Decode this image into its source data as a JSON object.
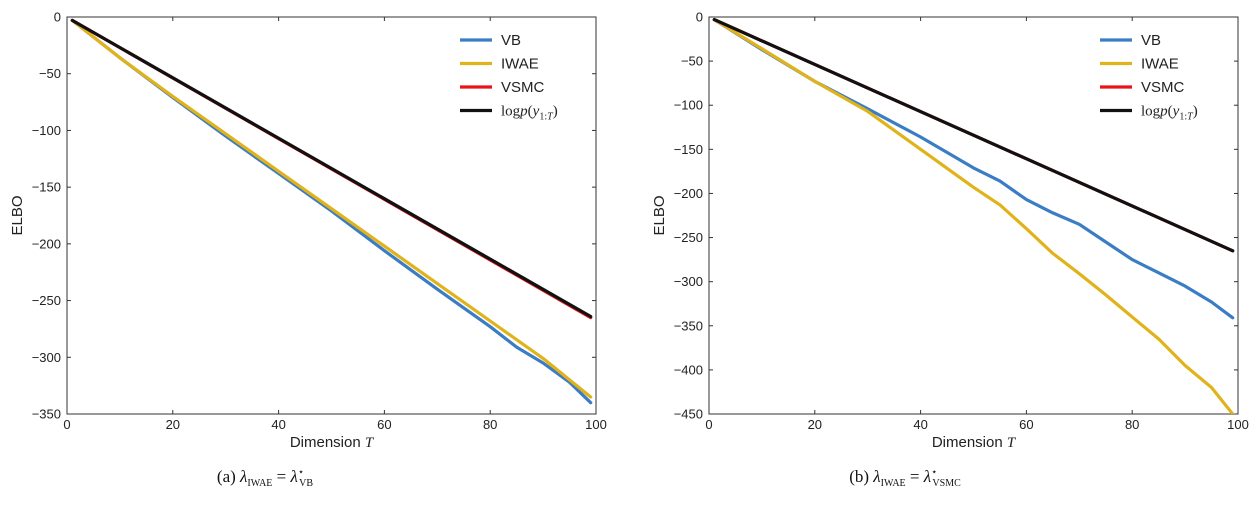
{
  "chart_data": [
    {
      "type": "line",
      "xlabel": "Dimension ",
      "xlabel_math": "T",
      "ylabel": "ELBO",
      "xlim": [
        0,
        100
      ],
      "ylim": [
        -350,
        0
      ],
      "xticks": [
        0,
        20,
        40,
        60,
        80,
        100
      ],
      "yticks": [
        0,
        -50,
        -100,
        -150,
        -200,
        -250,
        -300,
        -350
      ],
      "xtick_labels": [
        "0",
        "20",
        "40",
        "60",
        "80",
        "100"
      ],
      "ytick_labels": [
        "0",
        "−50",
        "−100",
        "−150",
        "−200",
        "−250",
        "−300",
        "−350"
      ],
      "legend_position": "top-right",
      "caption": {
        "prefix": "(a) ",
        "lhs": "λ",
        "lhs_sub": "IWAE",
        "eq": " = ",
        "rhs": "λ",
        "rhs_sup": "⋆",
        "rhs_sub": "VB"
      },
      "series": [
        {
          "name": "VB",
          "color": "#3b7dc4",
          "x": [
            1,
            10,
            20,
            30,
            40,
            50,
            60,
            70,
            80,
            85,
            90,
            95,
            99
          ],
          "y": [
            -3,
            -36,
            -71,
            -105,
            -138,
            -171,
            -206,
            -240,
            -273,
            -291,
            -305,
            -322,
            -340
          ]
        },
        {
          "name": "IWAE",
          "color": "#e0b31b",
          "x": [
            1,
            10,
            20,
            30,
            40,
            50,
            60,
            70,
            80,
            90,
            99
          ],
          "y": [
            -3,
            -36,
            -70,
            -103,
            -136,
            -169,
            -202,
            -235,
            -268,
            -301,
            -335
          ]
        },
        {
          "name": "VSMC",
          "color": "#e8141a",
          "x": [
            1,
            99
          ],
          "y": [
            -3,
            -265
          ]
        },
        {
          "name": "log p(y_{1:T})",
          "color": "#111111",
          "math_label": true,
          "x": [
            1,
            99
          ],
          "y": [
            -3,
            -264
          ]
        }
      ]
    },
    {
      "type": "line",
      "xlabel": "Dimension ",
      "xlabel_math": "T",
      "ylabel": "ELBO",
      "xlim": [
        0,
        100
      ],
      "ylim": [
        -450,
        0
      ],
      "xticks": [
        0,
        20,
        40,
        60,
        80,
        100
      ],
      "yticks": [
        0,
        -50,
        -100,
        -150,
        -200,
        -250,
        -300,
        -350,
        -400,
        -450
      ],
      "xtick_labels": [
        "0",
        "20",
        "40",
        "60",
        "80",
        "100"
      ],
      "ytick_labels": [
        "0",
        "−50",
        "−100",
        "−150",
        "−200",
        "−250",
        "−300",
        "−350",
        "−400",
        "−450"
      ],
      "legend_position": "top-right",
      "caption": {
        "prefix": "(b) ",
        "lhs": "λ",
        "lhs_sub": "IWAE",
        "eq": " = ",
        "rhs": "λ",
        "rhs_sup": "⋆",
        "rhs_sub": "VSMC"
      },
      "series": [
        {
          "name": "VB",
          "color": "#3b7dc4",
          "x": [
            1,
            10,
            20,
            30,
            40,
            50,
            55,
            60,
            65,
            70,
            75,
            80,
            85,
            90,
            95,
            99
          ],
          "y": [
            -3,
            -37,
            -73,
            -104,
            -136,
            -171,
            -186,
            -207,
            -222,
            -235,
            -255,
            -275,
            -290,
            -305,
            -323,
            -341
          ]
        },
        {
          "name": "IWAE",
          "color": "#e0b31b",
          "x": [
            1,
            10,
            20,
            30,
            40,
            50,
            55,
            60,
            65,
            70,
            75,
            80,
            85,
            90,
            95,
            99
          ],
          "y": [
            -3,
            -36,
            -73,
            -107,
            -150,
            -193,
            -213,
            -240,
            -268,
            -291,
            -315,
            -340,
            -365,
            -395,
            -420,
            -450
          ]
        },
        {
          "name": "VSMC",
          "color": "#e8141a",
          "x": [
            1,
            99
          ],
          "y": [
            -3,
            -265
          ]
        },
        {
          "name": "log p(y_{1:T})",
          "color": "#111111",
          "math_label": true,
          "x": [
            1,
            99
          ],
          "y": [
            -3,
            -265
          ]
        }
      ]
    }
  ]
}
